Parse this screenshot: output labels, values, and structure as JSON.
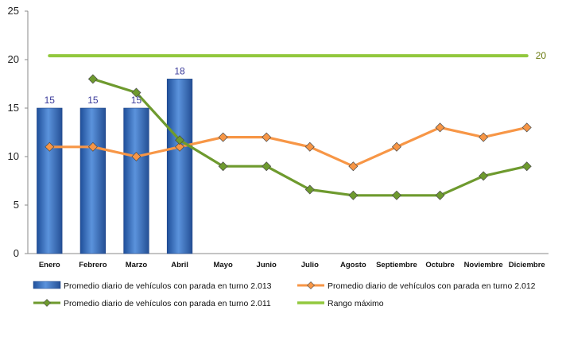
{
  "chart_data": {
    "type": "bar",
    "categories": [
      "Enero",
      "Febrero",
      "Marzo",
      "Abril",
      "Mayo",
      "Junio",
      "Julio",
      "Agosto",
      "Septiembre",
      "Octubre",
      "Noviembre",
      "Diciembre"
    ],
    "ylim": [
      0,
      25
    ],
    "yticks": [
      0,
      5,
      10,
      15,
      20,
      25
    ],
    "title": "",
    "xlabel": "",
    "ylabel": "",
    "grid": false,
    "legend_position": "bottom",
    "series": [
      {
        "name": "Promedio diario de vehículos con parada en turno 2.013",
        "type": "bar",
        "color": "#3a72c4",
        "values": [
          15,
          15,
          15,
          18,
          null,
          null,
          null,
          null,
          null,
          null,
          null,
          null
        ],
        "data_labels": [
          "15",
          "15",
          "15",
          "18"
        ]
      },
      {
        "name": "Promedio diario de vehículos con parada en turno 2.012",
        "type": "line",
        "color": "#f79646",
        "values": [
          11,
          11,
          10,
          11,
          12,
          12,
          11,
          9,
          11,
          13,
          12,
          13
        ]
      },
      {
        "name": "Promedio diario de vehículos con parada en turno 2.011",
        "type": "line",
        "color": "#6e9a2e",
        "values": [
          null,
          18,
          16.6,
          11.7,
          9,
          9,
          6.6,
          6,
          6,
          6,
          8,
          9
        ]
      },
      {
        "name": "Rango máximo",
        "type": "line",
        "color": "#92c83e",
        "values": [
          20.4,
          20.4,
          20.4,
          20.4,
          20.4,
          20.4,
          20.4,
          20.4,
          20.4,
          20.4,
          20.4,
          20.4
        ],
        "data_label": "20"
      }
    ]
  }
}
